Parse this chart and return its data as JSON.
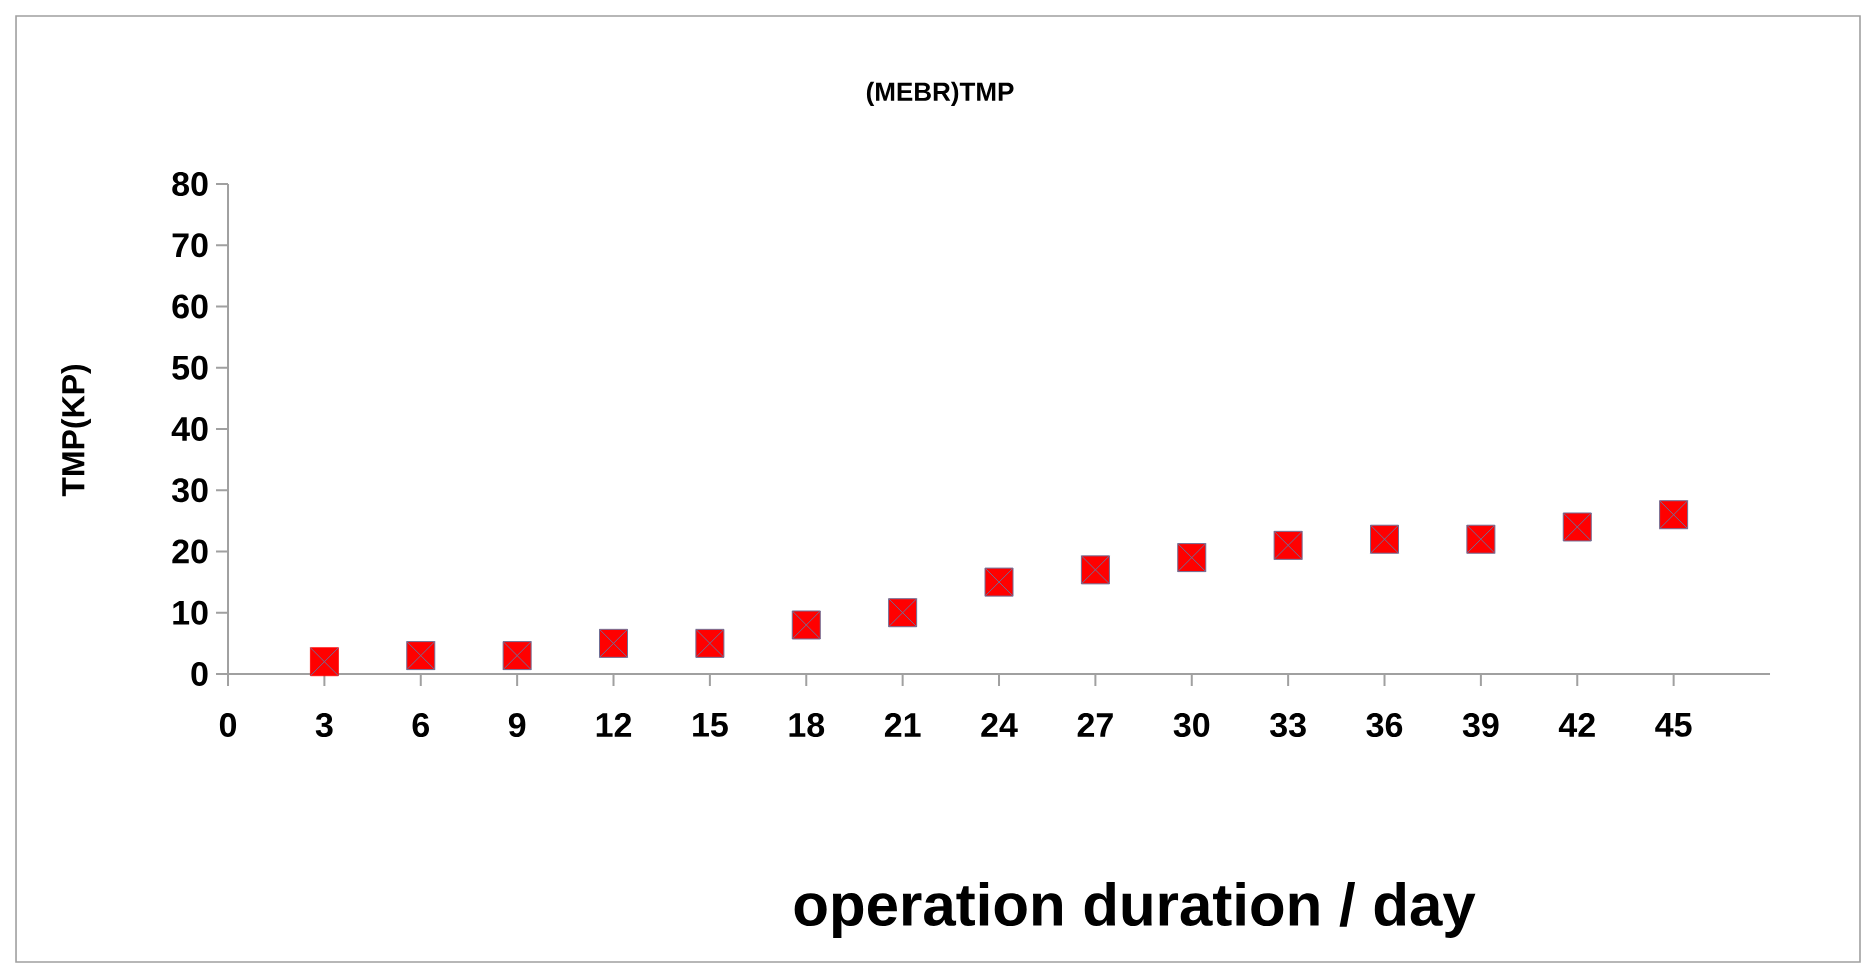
{
  "chart_data": {
    "type": "scatter",
    "title": "(MEBR)TMP",
    "xlabel": "operation duration / day",
    "ylabel": "TMP(KP)",
    "x": [
      3,
      6,
      9,
      12,
      15,
      18,
      21,
      24,
      27,
      30,
      33,
      36,
      39,
      42,
      45
    ],
    "values": [
      2,
      3,
      3,
      5,
      5,
      8,
      10,
      15,
      17,
      19,
      21,
      22,
      22,
      24,
      26
    ],
    "color": "#ff0000",
    "marker": "square",
    "xlim": [
      0,
      48
    ],
    "ylim": [
      0,
      80
    ],
    "xticks": [
      0,
      3,
      6,
      9,
      12,
      15,
      18,
      21,
      24,
      27,
      30,
      33,
      36,
      39,
      42,
      45
    ],
    "yticks": [
      0,
      10,
      20,
      30,
      40,
      50,
      60,
      70,
      80
    ]
  }
}
